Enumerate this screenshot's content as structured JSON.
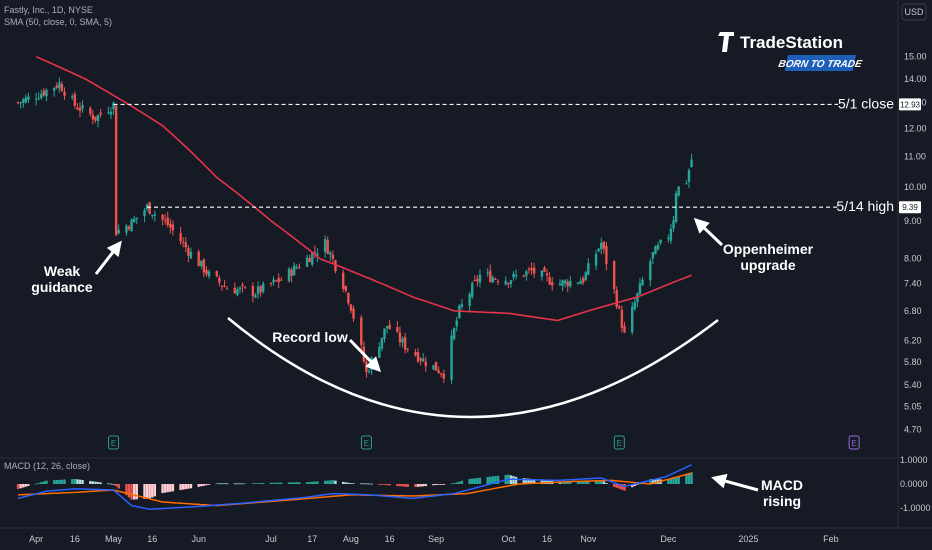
{
  "header": {
    "symbol_info": "Fastly, Inc., 1D, NYSE",
    "sma_info": "SMA (50, close, 0, SMA, 5)",
    "macd_info": "MACD (12, 26, close)"
  },
  "currency_label": "USD",
  "brand": {
    "name": "TradeStation",
    "tagline": "BORN TO TRADE"
  },
  "colors": {
    "background": "#161a25",
    "candle_up": "#26a69a",
    "candle_down": "#ef5350",
    "sma": "#e8334a",
    "macd_line": "#2962ff",
    "signal_line": "#ff6d00",
    "annotation": "#ffffff"
  },
  "chart_data": [
    {
      "type": "candlestick",
      "title": "Fastly, Inc., 1D, NYSE",
      "x_tick_labels": [
        "Apr",
        "16",
        "May",
        "16",
        "Jun",
        "Jul",
        "17",
        "Aug",
        "16",
        "Sep",
        "Oct",
        "16",
        "Nov",
        "Dec",
        "2025",
        "Feb"
      ],
      "y_scale": "log",
      "y_tick_labels": [
        "15.00",
        "14.00",
        "13.00",
        "12.00",
        "11.00",
        "10.00",
        "9.00",
        "8.00",
        "7.40",
        "6.80",
        "6.20",
        "5.80",
        "5.40",
        "5.05",
        "4.70"
      ],
      "ylim": [
        4.55,
        16.3
      ],
      "price_anchors": [
        {
          "date": "2024-03-25",
          "close": 13.0
        },
        {
          "date": "2024-04-03",
          "close": 13.4
        },
        {
          "date": "2024-04-10",
          "close": 13.8
        },
        {
          "date": "2024-04-16",
          "close": 12.9
        },
        {
          "date": "2024-04-24",
          "close": 12.4
        },
        {
          "date": "2024-05-01",
          "close": 12.93
        },
        {
          "date": "2024-05-02",
          "close": 8.7
        },
        {
          "date": "2024-05-08",
          "close": 8.95
        },
        {
          "date": "2024-05-14",
          "close": 9.39
        },
        {
          "date": "2024-05-22",
          "close": 8.9
        },
        {
          "date": "2024-05-30",
          "close": 8.2
        },
        {
          "date": "2024-06-07",
          "close": 7.6
        },
        {
          "date": "2024-06-14",
          "close": 7.3
        },
        {
          "date": "2024-06-25",
          "close": 7.2
        },
        {
          "date": "2024-07-05",
          "close": 7.5
        },
        {
          "date": "2024-07-15",
          "close": 8.0
        },
        {
          "date": "2024-07-22",
          "close": 8.4
        },
        {
          "date": "2024-07-29",
          "close": 7.4
        },
        {
          "date": "2024-08-01",
          "close": 6.9
        },
        {
          "date": "2024-08-07",
          "close": 5.6
        },
        {
          "date": "2024-08-15",
          "close": 6.5
        },
        {
          "date": "2024-08-22",
          "close": 6.1
        },
        {
          "date": "2024-08-30",
          "close": 5.8
        },
        {
          "date": "2024-09-06",
          "close": 5.6
        },
        {
          "date": "2024-09-12",
          "close": 6.8
        },
        {
          "date": "2024-09-20",
          "close": 7.6
        },
        {
          "date": "2024-10-01",
          "close": 7.5
        },
        {
          "date": "2024-10-10",
          "close": 7.7
        },
        {
          "date": "2024-10-20",
          "close": 7.4
        },
        {
          "date": "2024-10-30",
          "close": 7.5
        },
        {
          "date": "2024-11-06",
          "close": 8.4
        },
        {
          "date": "2024-11-12",
          "close": 7.0
        },
        {
          "date": "2024-11-15",
          "close": 6.3
        },
        {
          "date": "2024-11-21",
          "close": 7.3
        },
        {
          "date": "2024-11-26",
          "close": 8.1
        },
        {
          "date": "2024-12-02",
          "close": 8.6
        },
        {
          "date": "2024-12-04",
          "close": 9.1
        },
        {
          "date": "2024-12-05",
          "close": 9.9
        },
        {
          "date": "2024-12-09",
          "close": 10.2
        },
        {
          "date": "2024-12-11",
          "close": 10.9
        }
      ],
      "sma_anchors": [
        {
          "date": "2024-04-01",
          "value": 15.0
        },
        {
          "date": "2024-04-20",
          "value": 14.0
        },
        {
          "date": "2024-05-01",
          "value": 13.3
        },
        {
          "date": "2024-05-20",
          "value": 12.1
        },
        {
          "date": "2024-06-10",
          "value": 10.3
        },
        {
          "date": "2024-07-01",
          "value": 9.0
        },
        {
          "date": "2024-07-20",
          "value": 8.0
        },
        {
          "date": "2024-08-05",
          "value": 7.6
        },
        {
          "date": "2024-08-25",
          "value": 7.1
        },
        {
          "date": "2024-09-10",
          "value": 6.8
        },
        {
          "date": "2024-10-01",
          "value": 6.75
        },
        {
          "date": "2024-10-20",
          "value": 6.6
        },
        {
          "date": "2024-11-01",
          "value": 6.8
        },
        {
          "date": "2024-11-20",
          "value": 7.1
        },
        {
          "date": "2024-12-11",
          "value": 7.6
        }
      ],
      "reference_lines": [
        {
          "label": "5/1 close",
          "value": 12.93,
          "value_label": "12.93"
        },
        {
          "label": "5/14 high",
          "value": 9.39,
          "value_label": "9.39"
        }
      ],
      "earnings_markers": [
        {
          "date": "2024-05-01",
          "label": "E"
        },
        {
          "date": "2024-08-07",
          "label": "E"
        },
        {
          "date": "2024-11-13",
          "label": "E"
        },
        {
          "date": "2025-02-12",
          "label": "E"
        }
      ],
      "annotations": [
        {
          "text": [
            "Weak",
            "guidance"
          ]
        },
        {
          "text": [
            "Record low"
          ]
        },
        {
          "text": [
            "Oppenheimer",
            "upgrade"
          ]
        }
      ]
    },
    {
      "type": "macd",
      "title": "MACD (12, 26, close)",
      "y_tick_labels": [
        "1.0000",
        "0.0000",
        "-1.0000"
      ],
      "ylim": [
        -1.5,
        1.0
      ],
      "macd_anchors": [
        {
          "date": "2024-03-25",
          "value": -0.6
        },
        {
          "date": "2024-04-05",
          "value": -0.3
        },
        {
          "date": "2024-04-16",
          "value": -0.2
        },
        {
          "date": "2024-05-01",
          "value": -0.25
        },
        {
          "date": "2024-05-08",
          "value": -0.9
        },
        {
          "date": "2024-05-15",
          "value": -1.05
        },
        {
          "date": "2024-06-01",
          "value": -0.95
        },
        {
          "date": "2024-06-20",
          "value": -0.8
        },
        {
          "date": "2024-07-15",
          "value": -0.55
        },
        {
          "date": "2024-07-25",
          "value": -0.4
        },
        {
          "date": "2024-08-08",
          "value": -0.45
        },
        {
          "date": "2024-08-25",
          "value": -0.6
        },
        {
          "date": "2024-09-10",
          "value": -0.4
        },
        {
          "date": "2024-10-01",
          "value": 0.2
        },
        {
          "date": "2024-10-20",
          "value": 0.15
        },
        {
          "date": "2024-11-06",
          "value": 0.25
        },
        {
          "date": "2024-11-15",
          "value": -0.1
        },
        {
          "date": "2024-12-01",
          "value": 0.3
        },
        {
          "date": "2024-12-11",
          "value": 0.8
        }
      ],
      "signal_anchors": [
        {
          "date": "2024-03-25",
          "value": -0.45
        },
        {
          "date": "2024-04-16",
          "value": -0.35
        },
        {
          "date": "2024-05-01",
          "value": -0.25
        },
        {
          "date": "2024-05-20",
          "value": -0.75
        },
        {
          "date": "2024-06-10",
          "value": -0.9
        },
        {
          "date": "2024-07-10",
          "value": -0.65
        },
        {
          "date": "2024-08-01",
          "value": -0.45
        },
        {
          "date": "2024-08-25",
          "value": -0.5
        },
        {
          "date": "2024-09-15",
          "value": -0.4
        },
        {
          "date": "2024-10-05",
          "value": 0.0
        },
        {
          "date": "2024-10-25",
          "value": 0.1
        },
        {
          "date": "2024-11-10",
          "value": 0.15
        },
        {
          "date": "2024-11-25",
          "value": 0.0
        },
        {
          "date": "2024-12-11",
          "value": 0.45
        }
      ],
      "annotations": [
        {
          "text": [
            "MACD",
            "rising"
          ]
        }
      ]
    }
  ]
}
